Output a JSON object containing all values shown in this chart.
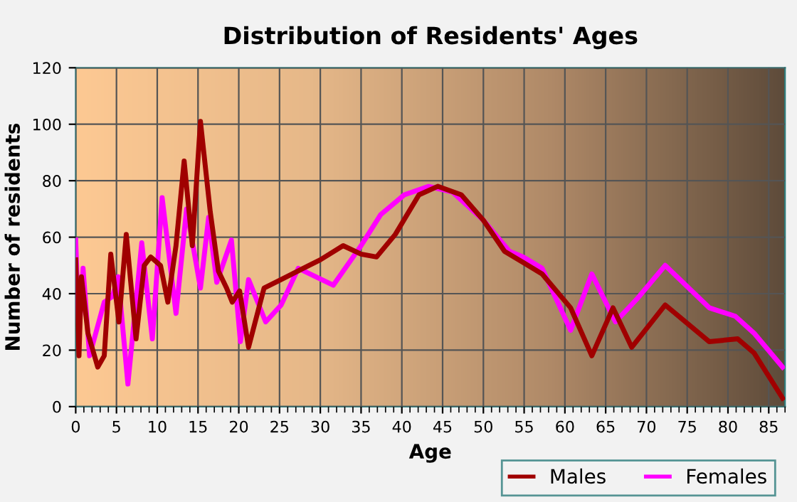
{
  "chart_data": {
    "type": "line",
    "title": "Distribution of Residents' Ages",
    "xlabel": "Age",
    "ylabel": "Number of residents",
    "xlim": [
      0,
      87
    ],
    "xticks": [
      0,
      5,
      10,
      15,
      20,
      25,
      30,
      35,
      40,
      45,
      50,
      55,
      60,
      65,
      70,
      75,
      80,
      85
    ],
    "ylim": [
      0,
      120
    ],
    "yticks": [
      0,
      20,
      40,
      60,
      80,
      100,
      120
    ],
    "grid": true,
    "legend": "bottom right",
    "marker": "none",
    "line_style": "solid",
    "series": [
      {
        "name": "Males",
        "color": "#a00000",
        "x": [
          0,
          0.4,
          0.7,
          1.5,
          2.7,
          3.5,
          4.3,
          5.3,
          6.2,
          7.4,
          8.4,
          9.2,
          10.4,
          11.3,
          12.3,
          13.3,
          14.3,
          15.3,
          16.5,
          17.5,
          18.5,
          19.2,
          20.1,
          21.2,
          23.1,
          25.2,
          28.6,
          30,
          32.8,
          35,
          36.9,
          39.2,
          42.1,
          44.4,
          47.3,
          50,
          52.6,
          54.9,
          57.2,
          60.7,
          63.3,
          65.9,
          68.2,
          72.3,
          77.7,
          81.2,
          83.2,
          86.7
        ],
        "values": [
          52,
          18,
          46,
          26,
          14,
          18,
          54,
          30,
          61,
          24,
          50,
          53,
          50,
          37,
          57,
          87,
          57,
          101,
          69,
          48,
          42,
          37,
          41,
          21,
          42,
          45,
          50,
          52,
          57,
          54,
          53,
          61,
          75,
          78,
          75,
          66,
          55,
          51,
          47,
          35,
          18,
          35,
          21,
          36,
          23,
          24,
          19,
          3
        ]
      },
      {
        "name": "Females",
        "color": "#ff00ff",
        "x": [
          0,
          0.4,
          0.9,
          1.7,
          3.5,
          4.5,
          5.2,
          6.4,
          8.1,
          9.4,
          10.6,
          12.3,
          13.6,
          15.3,
          16.3,
          17.3,
          19.1,
          20.2,
          21.2,
          23.3,
          25.2,
          27.3,
          31.6,
          35,
          37.4,
          40.3,
          43.3,
          46.2,
          50,
          53.2,
          54.9,
          57.2,
          60.7,
          63.3,
          66.2,
          68.8,
          72.3,
          77.7,
          80.9,
          83.2,
          86.7
        ],
        "values": [
          59,
          25,
          49,
          18,
          37,
          39,
          46,
          8,
          58,
          24,
          74,
          33,
          70,
          42,
          67,
          44,
          59,
          23,
          45,
          30,
          36,
          49,
          43,
          57,
          68,
          75,
          78,
          76,
          66,
          55,
          53,
          49,
          27,
          47,
          30,
          38,
          50,
          35,
          32,
          26,
          14
        ]
      }
    ]
  }
}
